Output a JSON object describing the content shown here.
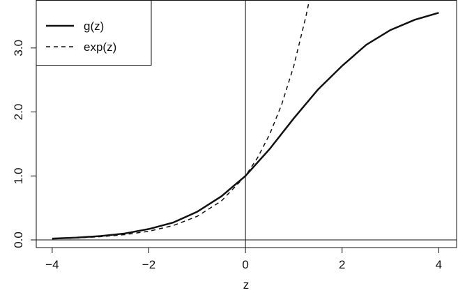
{
  "chart_data": {
    "type": "line",
    "x_label": "z",
    "xlim": [
      -4.33,
      4.37
    ],
    "ylim": [
      -0.12,
      3.75
    ],
    "xticks": [
      {
        "value": -4,
        "label": "−4"
      },
      {
        "value": -2,
        "label": "−2"
      },
      0,
      2,
      4
    ],
    "yticks": [
      {
        "value": 0,
        "label": "0.0"
      },
      {
        "value": 1,
        "label": "1.0"
      },
      {
        "value": 2,
        "label": "2.0"
      },
      {
        "value": 3,
        "label": "3.0"
      }
    ],
    "legend": "top-left",
    "series": [
      {
        "name": "g(z)",
        "color": "#111111",
        "dash": "solid",
        "x": [
          -4,
          -3.5,
          -3,
          -2.5,
          -2,
          -1.5,
          -1,
          -0.5,
          0,
          0.5,
          1,
          1.5,
          2,
          2.5,
          3,
          3.5,
          4
        ],
        "values": [
          0.02,
          0.035,
          0.06,
          0.1,
          0.17,
          0.27,
          0.44,
          0.68,
          1.0,
          1.42,
          1.9,
          2.35,
          2.72,
          3.05,
          3.28,
          3.44,
          3.55
        ]
      },
      {
        "name": "exp(z)",
        "color": "#111111",
        "dash": "dashed",
        "x": [
          -4,
          -3.5,
          -3,
          -2.5,
          -2,
          -1.5,
          -1,
          -0.5,
          0,
          0.25,
          0.5,
          0.75,
          1,
          1.25,
          1.32
        ],
        "values": [
          0.018,
          0.03,
          0.05,
          0.082,
          0.135,
          0.223,
          0.368,
          0.607,
          1.0,
          1.284,
          1.649,
          2.117,
          2.718,
          3.49,
          3.74
        ]
      }
    ]
  }
}
